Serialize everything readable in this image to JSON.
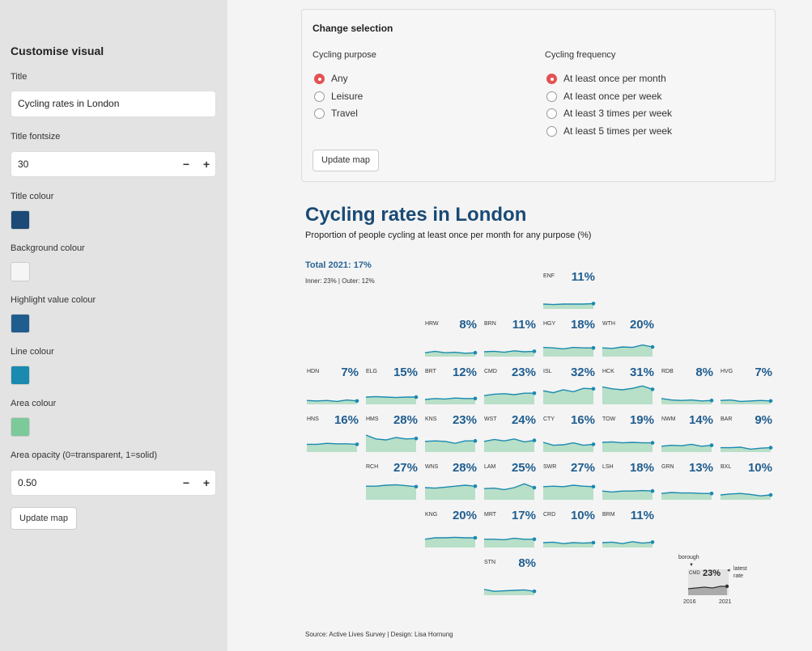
{
  "sidebar": {
    "heading": "Customise visual",
    "title_label": "Title",
    "title_value": "Cycling rates in London",
    "fontsize_label": "Title fontsize",
    "fontsize_value": "30",
    "title_colour_label": "Title colour",
    "background_colour_label": "Background colour",
    "highlight_colour_label": "Highlight value colour",
    "line_colour_label": "Line colour",
    "area_colour_label": "Area colour",
    "opacity_label": "Area opacity (0=transparent, 1=solid)",
    "opacity_value": "0.50",
    "minus": "−",
    "plus": "+",
    "update_button": "Update map",
    "colors": {
      "title": "#1a4a75",
      "background": "#f5f5f5",
      "highlight": "#1f5d8f",
      "line": "#1a8ab0",
      "area": "#7cc99a"
    }
  },
  "selection": {
    "title": "Change selection",
    "purpose_label": "Cycling purpose",
    "purpose_options": [
      "Any",
      "Leisure",
      "Travel"
    ],
    "purpose_selected": 0,
    "frequency_label": "Cycling frequency",
    "frequency_options": [
      "At least once per month",
      "At least once per week",
      "At least 3 times per week",
      "At least 5 times per week"
    ],
    "frequency_selected": 0,
    "update_button": "Update map"
  },
  "map": {
    "title": "Cycling rates in London",
    "subtitle": "Proportion of people cycling at least once per month for any purpose (%)",
    "total": "Total 2021: 17%",
    "inner_outer": "Inner: 23%  |  Outer: 12%",
    "source": "Source: Active Lives Survey | Design: Lisa Hornung",
    "legend": {
      "borough": "borough",
      "code": "CMD",
      "pct": "23%",
      "latest1": "latest",
      "latest2": "rate",
      "start_year": "2016",
      "end_year": "2021"
    },
    "tiles": [
      {
        "code": "ENF",
        "pct": "11%",
        "row": 0,
        "col": 4,
        "series": [
          10,
          9,
          10,
          10,
          10,
          11
        ]
      },
      {
        "code": "HRW",
        "pct": "8%",
        "row": 1,
        "col": 2,
        "series": [
          8,
          11,
          8,
          9,
          7,
          8
        ]
      },
      {
        "code": "BRN",
        "pct": "11%",
        "row": 1,
        "col": 3,
        "series": [
          10,
          11,
          9,
          12,
          10,
          11
        ]
      },
      {
        "code": "HGY",
        "pct": "18%",
        "row": 1,
        "col": 4,
        "series": [
          19,
          18,
          16,
          19,
          18,
          18
        ]
      },
      {
        "code": "WTH",
        "pct": "20%",
        "row": 1,
        "col": 5,
        "series": [
          18,
          17,
          20,
          19,
          24,
          20
        ]
      },
      {
        "code": "HDN",
        "pct": "7%",
        "row": 2,
        "col": 0,
        "series": [
          8,
          7,
          8,
          6,
          9,
          7
        ]
      },
      {
        "code": "ELG",
        "pct": "15%",
        "row": 2,
        "col": 1,
        "series": [
          15,
          16,
          15,
          14,
          15,
          15
        ]
      },
      {
        "code": "BRT",
        "pct": "12%",
        "row": 2,
        "col": 2,
        "series": [
          10,
          12,
          11,
          13,
          12,
          12
        ]
      },
      {
        "code": "CMD",
        "pct": "23%",
        "row": 2,
        "col": 3,
        "series": [
          18,
          21,
          22,
          20,
          23,
          23
        ]
      },
      {
        "code": "ISL",
        "pct": "32%",
        "row": 2,
        "col": 4,
        "series": [
          28,
          24,
          30,
          26,
          33,
          32
        ]
      },
      {
        "code": "HCK",
        "pct": "31%",
        "row": 2,
        "col": 5,
        "series": [
          36,
          32,
          30,
          33,
          38,
          31
        ]
      },
      {
        "code": "RDB",
        "pct": "8%",
        "row": 2,
        "col": 6,
        "series": [
          12,
          9,
          8,
          9,
          7,
          8
        ]
      },
      {
        "code": "HVG",
        "pct": "7%",
        "row": 2,
        "col": 7,
        "series": [
          8,
          9,
          6,
          7,
          8,
          7
        ]
      },
      {
        "code": "HNS",
        "pct": "16%",
        "row": 3,
        "col": 0,
        "series": [
          16,
          16,
          18,
          17,
          17,
          16
        ]
      },
      {
        "code": "HMS",
        "pct": "28%",
        "row": 3,
        "col": 1,
        "series": [
          35,
          27,
          25,
          30,
          27,
          28
        ]
      },
      {
        "code": "KNS",
        "pct": "23%",
        "row": 3,
        "col": 2,
        "series": [
          22,
          23,
          22,
          18,
          23,
          23
        ]
      },
      {
        "code": "WST",
        "pct": "24%",
        "row": 3,
        "col": 3,
        "series": [
          22,
          26,
          23,
          27,
          21,
          24
        ]
      },
      {
        "code": "CTY",
        "pct": "16%",
        "row": 3,
        "col": 4,
        "series": [
          20,
          14,
          15,
          19,
          14,
          16
        ]
      },
      {
        "code": "TOW",
        "pct": "19%",
        "row": 3,
        "col": 5,
        "series": [
          20,
          21,
          19,
          20,
          19,
          19
        ]
      },
      {
        "code": "NWM",
        "pct": "14%",
        "row": 3,
        "col": 6,
        "series": [
          12,
          14,
          13,
          16,
          12,
          14
        ]
      },
      {
        "code": "BAR",
        "pct": "9%",
        "row": 3,
        "col": 7,
        "series": [
          9,
          9,
          10,
          6,
          8,
          9
        ]
      },
      {
        "code": "RCH",
        "pct": "27%",
        "row": 4,
        "col": 1,
        "series": [
          28,
          28,
          30,
          31,
          29,
          27
        ]
      },
      {
        "code": "WNS",
        "pct": "28%",
        "row": 4,
        "col": 2,
        "series": [
          25,
          24,
          26,
          28,
          30,
          28
        ]
      },
      {
        "code": "LAM",
        "pct": "25%",
        "row": 4,
        "col": 3,
        "series": [
          23,
          24,
          21,
          25,
          33,
          25
        ]
      },
      {
        "code": "SWR",
        "pct": "27%",
        "row": 4,
        "col": 4,
        "series": [
          27,
          28,
          27,
          30,
          28,
          27
        ]
      },
      {
        "code": "LSH",
        "pct": "18%",
        "row": 4,
        "col": 5,
        "series": [
          18,
          16,
          18,
          18,
          19,
          18
        ]
      },
      {
        "code": "GRN",
        "pct": "13%",
        "row": 4,
        "col": 6,
        "series": [
          13,
          15,
          14,
          14,
          13,
          13
        ]
      },
      {
        "code": "BXL",
        "pct": "10%",
        "row": 4,
        "col": 7,
        "series": [
          10,
          12,
          13,
          11,
          8,
          10
        ]
      },
      {
        "code": "KNG",
        "pct": "20%",
        "row": 5,
        "col": 2,
        "series": [
          17,
          20,
          20,
          21,
          20,
          20
        ]
      },
      {
        "code": "MRT",
        "pct": "17%",
        "row": 5,
        "col": 3,
        "series": [
          17,
          17,
          16,
          19,
          17,
          17
        ]
      },
      {
        "code": "CRD",
        "pct": "10%",
        "row": 5,
        "col": 4,
        "series": [
          10,
          11,
          8,
          10,
          9,
          10
        ]
      },
      {
        "code": "BRM",
        "pct": "11%",
        "row": 5,
        "col": 5,
        "series": [
          10,
          11,
          8,
          12,
          9,
          11
        ]
      },
      {
        "code": "STN",
        "pct": "8%",
        "row": 6,
        "col": 3,
        "series": [
          12,
          8,
          9,
          10,
          11,
          8
        ]
      }
    ]
  }
}
